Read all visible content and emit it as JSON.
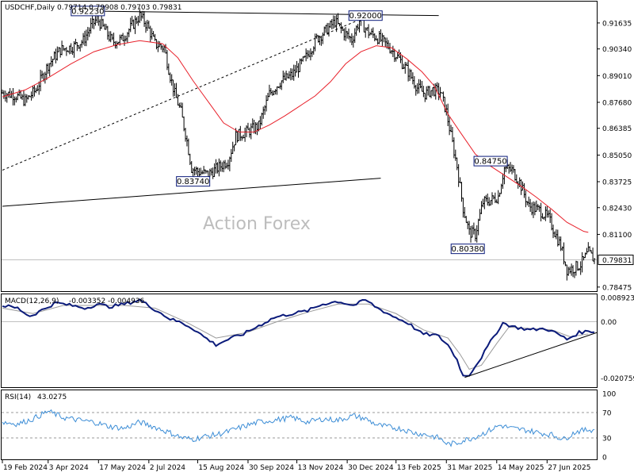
{
  "header": {
    "symbol": "USDCHF,Daily",
    "ohlc": "0.79714 0.79908 0.79703 0.79831"
  },
  "watermark": "Action Forex",
  "colors": {
    "candles": "#000000",
    "ma": "#e8202a",
    "macd": "#0a1a7a",
    "signal": "#9a9a9a",
    "rsi": "#3c8dd6",
    "trend": "#000000",
    "dotted": "#000000",
    "level_border": "#0a1a7a"
  },
  "chart_data": [
    {
      "type": "candlestick",
      "title": "USDCHF,Daily",
      "x_ticks": [
        "19 Feb 2024",
        "3 Apr 2024",
        "17 May 2024",
        "2 Jul 2024",
        "15 Aug 2024",
        "30 Sep 2024",
        "13 Nov 2024",
        "30 Dec 2024",
        "13 Feb 2025",
        "31 Mar 2025",
        "14 May 2025",
        "27 Jun 2025"
      ],
      "y_ticks": [
        "0.91635",
        "0.90340",
        "0.89010",
        "0.87680",
        "0.86385",
        "0.85050",
        "0.83725",
        "0.82430",
        "0.81100",
        "0.79831",
        "0.78475"
      ],
      "ylim": [
        0.7835,
        0.9262
      ],
      "last_price": "0.79831",
      "close_path": [
        [
          0,
          0.8815
        ],
        [
          8,
          0.8805
        ],
        [
          15,
          0.8775
        ],
        [
          22,
          0.883
        ],
        [
          30,
          0.8955
        ],
        [
          38,
          0.903
        ],
        [
          46,
          0.9045
        ],
        [
          53,
          0.9075
        ],
        [
          58,
          0.9145
        ],
        [
          62,
          0.9185
        ],
        [
          67,
          0.913
        ],
        [
          72,
          0.907
        ],
        [
          78,
          0.908
        ],
        [
          84,
          0.914
        ],
        [
          90,
          0.92
        ],
        [
          95,
          0.915
        ],
        [
          100,
          0.906
        ],
        [
          106,
          0.904
        ],
        [
          110,
          0.89
        ],
        [
          113,
          0.881
        ],
        [
          117,
          0.872
        ],
        [
          121,
          0.8575
        ],
        [
          124,
          0.844
        ],
        [
          129,
          0.842
        ],
        [
          135,
          0.841
        ],
        [
          142,
          0.8445
        ],
        [
          148,
          0.848
        ],
        [
          153,
          0.86
        ],
        [
          160,
          0.862
        ],
        [
          168,
          0.865
        ],
        [
          175,
          0.881
        ],
        [
          182,
          0.887
        ],
        [
          190,
          0.8905
        ],
        [
          198,
          0.898
        ],
        [
          206,
          0.9085
        ],
        [
          212,
          0.9125
        ],
        [
          218,
          0.917
        ],
        [
          224,
          0.9115
        ],
        [
          229,
          0.908
        ],
        [
          234,
          0.9175
        ],
        [
          240,
          0.9115
        ],
        [
          247,
          0.9085
        ],
        [
          254,
          0.904
        ],
        [
          260,
          0.8985
        ],
        [
          266,
          0.892
        ],
        [
          272,
          0.884
        ],
        [
          277,
          0.881
        ],
        [
          282,
          0.883
        ],
        [
          287,
          0.882
        ],
        [
          291,
          0.872
        ],
        [
          294,
          0.86
        ],
        [
          298,
          0.845
        ],
        [
          302,
          0.824
        ],
        [
          306,
          0.812
        ],
        [
          310,
          0.811
        ],
        [
          315,
          0.827
        ],
        [
          320,
          0.828
        ],
        [
          325,
          0.83
        ],
        [
          329,
          0.844
        ],
        [
          334,
          0.843
        ],
        [
          339,
          0.837
        ],
        [
          345,
          0.825
        ],
        [
          352,
          0.823
        ],
        [
          358,
          0.819
        ],
        [
          362,
          0.812
        ],
        [
          366,
          0.805
        ],
        [
          370,
          0.7935
        ],
        [
          374,
          0.794
        ],
        [
          379,
          0.796
        ],
        [
          384,
          0.802
        ],
        [
          388,
          0.7983
        ]
      ],
      "ma_path": [
        [
          0,
          0.8795
        ],
        [
          15,
          0.883
        ],
        [
          30,
          0.889
        ],
        [
          45,
          0.896
        ],
        [
          60,
          0.902
        ],
        [
          75,
          0.9055
        ],
        [
          90,
          0.9075
        ],
        [
          105,
          0.906
        ],
        [
          115,
          0.899
        ],
        [
          125,
          0.8875
        ],
        [
          135,
          0.877
        ],
        [
          145,
          0.8665
        ],
        [
          155,
          0.862
        ],
        [
          165,
          0.862
        ],
        [
          175,
          0.8655
        ],
        [
          185,
          0.87
        ],
        [
          195,
          0.875
        ],
        [
          205,
          0.88
        ],
        [
          215,
          0.887
        ],
        [
          225,
          0.896
        ],
        [
          235,
          0.902
        ],
        [
          245,
          0.905
        ],
        [
          255,
          0.904
        ],
        [
          265,
          0.8985
        ],
        [
          275,
          0.892
        ],
        [
          283,
          0.885
        ],
        [
          292,
          0.871
        ],
        [
          300,
          0.862
        ],
        [
          310,
          0.851
        ],
        [
          320,
          0.845
        ],
        [
          330,
          0.84
        ],
        [
          340,
          0.835
        ],
        [
          350,
          0.8295
        ],
        [
          360,
          0.8235
        ],
        [
          370,
          0.817
        ],
        [
          381,
          0.8125
        ],
        [
          384,
          0.812
        ]
      ],
      "levels": [
        {
          "label": "0.92230",
          "index": 56,
          "value": 0.9223
        },
        {
          "label": "0.92000",
          "index": 238,
          "value": 0.92
        },
        {
          "label": "0.83740",
          "index": 125,
          "value": 0.8374
        },
        {
          "label": "0.84750",
          "index": 320,
          "value": 0.8475
        },
        {
          "label": "0.80380",
          "index": 305,
          "value": 0.8038
        }
      ],
      "trendlines": [
        {
          "style": "solid",
          "from": [
            0,
            0.825
          ],
          "to": [
            248,
            0.839
          ]
        },
        {
          "style": "solid",
          "from": [
            56,
            0.9223
          ],
          "to": [
            286,
            0.92
          ]
        },
        {
          "style": "dashed",
          "from": [
            0,
            0.843
          ],
          "to": [
            242,
            0.9205
          ]
        }
      ]
    },
    {
      "type": "line",
      "title": "MACD(12,26,9)",
      "values_text": "-0.003352 -0.004936",
      "y_ticks": [
        "0.008923",
        "0.00",
        "-0.020759"
      ],
      "ylim": [
        -0.0235,
        0.0095
      ],
      "series": [
        {
          "name": "MACD",
          "path": [
            [
              0,
              0.006
            ],
            [
              10,
              0.005
            ],
            [
              18,
              0.002
            ],
            [
              25,
              0.004
            ],
            [
              35,
              0.007
            ],
            [
              45,
              0.006
            ],
            [
              55,
              0.005
            ],
            [
              62,
              0.0065
            ],
            [
              70,
              0.0055
            ],
            [
              80,
              0.0065
            ],
            [
              90,
              0.008
            ],
            [
              100,
              0.0045
            ],
            [
              110,
              0.001
            ],
            [
              118,
              -0.0005
            ],
            [
              125,
              -0.0025
            ],
            [
              132,
              -0.0055
            ],
            [
              140,
              -0.0085
            ],
            [
              148,
              -0.0065
            ],
            [
              158,
              -0.0045
            ],
            [
              168,
              -0.0015
            ],
            [
              178,
              0.0015
            ],
            [
              190,
              0.003
            ],
            [
              200,
              0.004
            ],
            [
              210,
              0.0065
            ],
            [
              220,
              0.0075
            ],
            [
              230,
              0.006
            ],
            [
              238,
              0.008
            ],
            [
              246,
              0.005
            ],
            [
              256,
              0.002
            ],
            [
              266,
              -0.0005
            ],
            [
              275,
              -0.0045
            ],
            [
              285,
              -0.005
            ],
            [
              292,
              -0.0085
            ],
            [
              298,
              -0.014
            ],
            [
              302,
              -0.02
            ],
            [
              306,
              -0.0195
            ],
            [
              314,
              -0.013
            ],
            [
              322,
              -0.0055
            ],
            [
              328,
              -0.0005
            ],
            [
              336,
              -0.002
            ],
            [
              346,
              -0.003
            ],
            [
              356,
              -0.0025
            ],
            [
              364,
              -0.0045
            ],
            [
              370,
              -0.0065
            ],
            [
              378,
              -0.004
            ],
            [
              384,
              -0.0035
            ]
          ]
        },
        {
          "name": "Signal",
          "path": [
            [
              0,
              0.005
            ],
            [
              20,
              0.003
            ],
            [
              40,
              0.006
            ],
            [
              60,
              0.006
            ],
            [
              80,
              0.006
            ],
            [
              100,
              0.005
            ],
            [
              120,
              0.0
            ],
            [
              140,
              -0.006
            ],
            [
              160,
              -0.004
            ],
            [
              180,
              0.0
            ],
            [
              200,
              0.0035
            ],
            [
              220,
              0.0065
            ],
            [
              240,
              0.0065
            ],
            [
              258,
              0.003
            ],
            [
              276,
              -0.003
            ],
            [
              292,
              -0.006
            ],
            [
              300,
              -0.012
            ],
            [
              306,
              -0.0175
            ],
            [
              314,
              -0.016
            ],
            [
              324,
              -0.008
            ],
            [
              332,
              -0.002
            ],
            [
              346,
              -0.0025
            ],
            [
              360,
              -0.003
            ],
            [
              372,
              -0.0055
            ],
            [
              384,
              -0.0045
            ]
          ]
        }
      ],
      "trendline": {
        "from": [
          303,
          -0.0205
        ],
        "to": [
          384,
          -0.0065
        ]
      }
    },
    {
      "type": "line",
      "title": "RSI(14)",
      "value_text": "43.0275",
      "y_ticks": [
        "100",
        "70",
        "30",
        "0"
      ],
      "ylim": [
        0,
        100
      ],
      "levels": [
        70,
        30
      ],
      "series": [
        {
          "name": "RSI(14)",
          "path": [
            [
              0,
              55
            ],
            [
              10,
              52
            ],
            [
              20,
              60
            ],
            [
              30,
              72
            ],
            [
              40,
              62
            ],
            [
              50,
              58
            ],
            [
              60,
              55
            ],
            [
              70,
              48
            ],
            [
              80,
              45
            ],
            [
              90,
              55
            ],
            [
              100,
              47
            ],
            [
              110,
              38
            ],
            [
              118,
              30
            ],
            [
              125,
              28
            ],
            [
              132,
              32
            ],
            [
              140,
              35
            ],
            [
              148,
              40
            ],
            [
              158,
              48
            ],
            [
              168,
              55
            ],
            [
              178,
              58
            ],
            [
              190,
              62
            ],
            [
              200,
              55
            ],
            [
              210,
              60
            ],
            [
              220,
              58
            ],
            [
              230,
              65
            ],
            [
              238,
              60
            ],
            [
              246,
              50
            ],
            [
              254,
              47
            ],
            [
              262,
              44
            ],
            [
              270,
              38
            ],
            [
              278,
              35
            ],
            [
              286,
              30
            ],
            [
              292,
              20
            ],
            [
              298,
              22
            ],
            [
              302,
              26
            ],
            [
              308,
              30
            ],
            [
              316,
              38
            ],
            [
              326,
              50
            ],
            [
              334,
              45
            ],
            [
              344,
              42
            ],
            [
              352,
              38
            ],
            [
              360,
              35
            ],
            [
              368,
              28
            ],
            [
              376,
              40
            ],
            [
              384,
              43
            ]
          ]
        }
      ]
    }
  ]
}
